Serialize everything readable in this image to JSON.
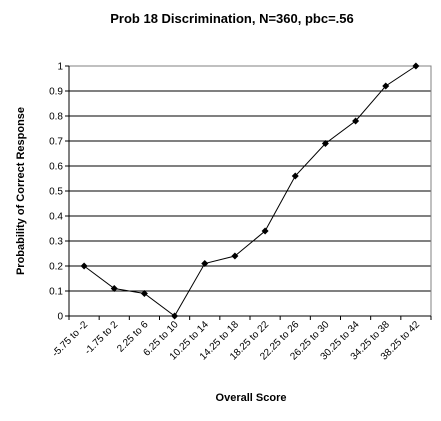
{
  "chart_data": {
    "type": "line",
    "title": "Prob 18 Discrimination, N=360, pbc=.56",
    "xlabel": "Overall Score",
    "ylabel": "Probability of Correct Response",
    "categories": [
      "-5.75 to -2",
      "-1.75 to 2",
      "2.25 to 6",
      "6.25 to 10",
      "10.25 to 14",
      "14.25 to 18",
      "18.25 to 22",
      "22.25 to 26",
      "26.25 to 30",
      "30.25 to 34",
      "34.25 to 38",
      "38.25 to 42"
    ],
    "values": [
      0.2,
      0.11,
      0.09,
      0.0,
      0.21,
      0.24,
      0.34,
      0.56,
      0.69,
      0.78,
      0.92,
      1.0
    ],
    "ylim": [
      0,
      1
    ],
    "yticks": [
      "0",
      "0.1",
      "0.2",
      "0.3",
      "0.4",
      "0.5",
      "0.6",
      "0.7",
      "0.8",
      "0.9",
      "1"
    ],
    "grid": true,
    "legend": "none",
    "colors": {
      "line": "#000000",
      "grid": "#000000",
      "background": "#ffffff"
    }
  }
}
